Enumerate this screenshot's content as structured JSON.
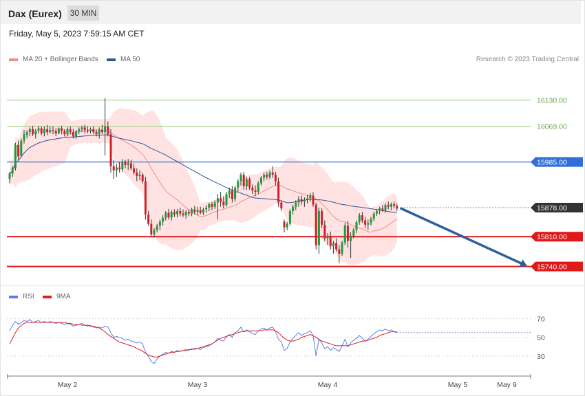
{
  "header": {
    "title": "Dax (Eurex)",
    "interval": "30 MIN",
    "datetime": "Friday, May 5, 2023 7:59:15 AM CET"
  },
  "legend": {
    "ma20": "MA 20 + Bollinger Bands",
    "ma50": "MA 50",
    "rsi": "RSI",
    "rsi_ma": "9MA"
  },
  "credit": "Research © 2023 Trading Central",
  "colors": {
    "ma20": "#f08a8a",
    "ma50": "#2f5597",
    "rsi": "#5b7fe8",
    "rsi_ma": "#e02020",
    "band": "#ffd9d9",
    "up": "#1f9a3c",
    "down": "#d0202a",
    "arrow": "#2e5f9b"
  },
  "chart_data": {
    "type": "candlestick",
    "price_range": [
      15712,
      16210
    ],
    "levels": [
      {
        "value": "16130.00",
        "price": 16130,
        "color": "#8cc870",
        "style": "target-green"
      },
      {
        "value": "16069.00",
        "price": 16069,
        "color": "#8cc870",
        "style": "target-green"
      },
      {
        "value": "15985.00",
        "price": 15985,
        "color": "#2f6fd6",
        "style": "pivot"
      },
      {
        "value": "15878.00",
        "price": 15878,
        "color": "#333333",
        "style": "last-price"
      },
      {
        "value": "15810.00",
        "price": 15810,
        "color": "#e01818",
        "style": "support"
      },
      {
        "value": "15740.00",
        "price": 15740,
        "color": "#e01818",
        "style": "support"
      }
    ],
    "x_labels": [
      "May 2",
      "May 3",
      "May 4",
      "May 5",
      "May 9"
    ],
    "x_label_bar_index": [
      20,
      65,
      110,
      155,
      172
    ],
    "rsi_ticks": [
      "70",
      "50",
      "30"
    ],
    "rsi_range": [
      10,
      80
    ],
    "forecast_arrow": {
      "from_price": 15876,
      "to_price": 15741
    },
    "candles": [
      [
        15945,
        15962,
        15935,
        15958
      ],
      [
        15958,
        15975,
        15950,
        15970
      ],
      [
        15970,
        16030,
        15965,
        16025
      ],
      [
        16025,
        16035,
        15990,
        15998
      ],
      [
        16000,
        16040,
        15996,
        16035
      ],
      [
        16035,
        16060,
        16028,
        16050
      ],
      [
        16048,
        16060,
        16040,
        16055
      ],
      [
        16055,
        16066,
        16045,
        16062
      ],
      [
        16062,
        16070,
        16046,
        16050
      ],
      [
        16050,
        16062,
        16040,
        16058
      ],
      [
        16058,
        16070,
        16052,
        16064
      ],
      [
        16064,
        16068,
        16048,
        16052
      ],
      [
        16052,
        16068,
        16045,
        16062
      ],
      [
        16062,
        16072,
        16048,
        16055
      ],
      [
        16055,
        16068,
        16052,
        16060
      ],
      [
        16060,
        16068,
        16050,
        16058
      ],
      [
        16058,
        16064,
        16046,
        16052
      ],
      [
        16052,
        16066,
        16050,
        16064
      ],
      [
        16064,
        16070,
        16050,
        16058
      ],
      [
        16058,
        16062,
        16045,
        16050
      ],
      [
        16050,
        16066,
        16046,
        16062
      ],
      [
        16062,
        16068,
        16050,
        16055
      ],
      [
        16055,
        16062,
        16040,
        16045
      ],
      [
        16045,
        16060,
        16040,
        16057
      ],
      [
        16057,
        16066,
        16050,
        16062
      ],
      [
        16062,
        16070,
        16055,
        16066
      ],
      [
        16066,
        16072,
        16052,
        16060
      ],
      [
        16060,
        16068,
        16052,
        16058
      ],
      [
        16058,
        16066,
        16052,
        16062
      ],
      [
        16062,
        16068,
        16050,
        16055
      ],
      [
        16055,
        16062,
        16045,
        16050
      ],
      [
        16050,
        16066,
        16040,
        16061
      ],
      [
        16061,
        16072,
        16050,
        16055
      ],
      [
        16055,
        16135,
        16000,
        16068
      ],
      [
        16068,
        16080,
        16045,
        16050
      ],
      [
        16050,
        16062,
        15960,
        15975
      ],
      [
        15975,
        15990,
        15945,
        15965
      ],
      [
        15965,
        15980,
        15950,
        15972
      ],
      [
        15972,
        15985,
        15960,
        15968
      ],
      [
        15968,
        15992,
        15962,
        15985
      ],
      [
        15985,
        15990,
        15970,
        15978
      ],
      [
        15978,
        15992,
        15966,
        15982
      ],
      [
        15982,
        15990,
        15965,
        15970
      ],
      [
        15970,
        15980,
        15955,
        15960
      ],
      [
        15960,
        15970,
        15940,
        15952
      ],
      [
        15952,
        15965,
        15942,
        15955
      ],
      [
        15955,
        15960,
        15935,
        15940
      ],
      [
        15940,
        15950,
        15850,
        15862
      ],
      [
        15862,
        15870,
        15835,
        15840
      ],
      [
        15840,
        15850,
        15810,
        15815
      ],
      [
        15815,
        15830,
        15808,
        15826
      ],
      [
        15826,
        15840,
        15820,
        15835
      ],
      [
        15835,
        15850,
        15825,
        15845
      ],
      [
        15845,
        15860,
        15836,
        15854
      ],
      [
        15854,
        15870,
        15848,
        15866
      ],
      [
        15866,
        15875,
        15850,
        15855
      ],
      [
        15855,
        15872,
        15848,
        15868
      ],
      [
        15868,
        15874,
        15856,
        15862
      ],
      [
        15862,
        15875,
        15855,
        15870
      ],
      [
        15870,
        15878,
        15858,
        15864
      ],
      [
        15864,
        15874,
        15856,
        15860
      ],
      [
        15860,
        15872,
        15852,
        15868
      ],
      [
        15868,
        15874,
        15858,
        15864
      ],
      [
        15864,
        15878,
        15858,
        15874
      ],
      [
        15874,
        15882,
        15862,
        15868
      ],
      [
        15868,
        15880,
        15860,
        15872
      ],
      [
        15872,
        15880,
        15862,
        15866
      ],
      [
        15866,
        15878,
        15860,
        15874
      ],
      [
        15874,
        15884,
        15866,
        15878
      ],
      [
        15878,
        15890,
        15870,
        15886
      ],
      [
        15886,
        15892,
        15872,
        15880
      ],
      [
        15880,
        15895,
        15875,
        15890
      ],
      [
        15890,
        15910,
        15850,
        15900
      ],
      [
        15900,
        15915,
        15880,
        15892
      ],
      [
        15892,
        15905,
        15876,
        15884
      ],
      [
        15884,
        15915,
        15880,
        15910
      ],
      [
        15910,
        15925,
        15900,
        15918
      ],
      [
        15918,
        15928,
        15890,
        15898
      ],
      [
        15898,
        15930,
        15892,
        15925
      ],
      [
        15925,
        15945,
        15915,
        15940
      ],
      [
        15940,
        15960,
        15930,
        15955
      ],
      [
        15955,
        15962,
        15920,
        15928
      ],
      [
        15928,
        15950,
        15920,
        15945
      ],
      [
        15945,
        15950,
        15920,
        15925
      ],
      [
        15925,
        15932,
        15910,
        15918
      ],
      [
        15918,
        15930,
        15905,
        15915
      ],
      [
        15915,
        15940,
        15910,
        15935
      ],
      [
        15935,
        15952,
        15930,
        15948
      ],
      [
        15948,
        15960,
        15940,
        15955
      ],
      [
        15955,
        15962,
        15944,
        15950
      ],
      [
        15950,
        15965,
        15945,
        15960
      ],
      [
        15960,
        15975,
        15948,
        15955
      ],
      [
        15955,
        15962,
        15930,
        15940
      ],
      [
        15940,
        15948,
        15880,
        15890
      ],
      [
        15890,
        15895,
        15870,
        15876
      ],
      [
        15845,
        15850,
        15820,
        15832
      ],
      [
        15832,
        15845,
        15825,
        15840
      ],
      [
        15840,
        15875,
        15836,
        15870
      ],
      [
        15870,
        15885,
        15862,
        15880
      ],
      [
        15880,
        15895,
        15872,
        15890
      ],
      [
        15890,
        15905,
        15880,
        15898
      ],
      [
        15898,
        15906,
        15885,
        15892
      ],
      [
        15892,
        15902,
        15880,
        15896
      ],
      [
        15896,
        15908,
        15888,
        15900
      ],
      [
        15900,
        15912,
        15892,
        15906
      ],
      [
        15906,
        15914,
        15880,
        15885
      ],
      [
        15885,
        15890,
        15780,
        15790
      ],
      [
        15790,
        15878,
        15770,
        15870
      ],
      [
        15870,
        15876,
        15830,
        15838
      ],
      [
        15838,
        15848,
        15800,
        15806
      ],
      [
        15806,
        15818,
        15790,
        15812
      ],
      [
        15812,
        15822,
        15780,
        15788
      ],
      [
        15788,
        15800,
        15770,
        15795
      ],
      [
        15795,
        15806,
        15775,
        15780
      ],
      [
        15780,
        15790,
        15748,
        15770
      ],
      [
        15770,
        15800,
        15765,
        15796
      ],
      [
        15796,
        15842,
        15790,
        15836
      ],
      [
        15836,
        15846,
        15784,
        15800
      ],
      [
        15800,
        15820,
        15760,
        15812
      ],
      [
        15812,
        15830,
        15806,
        15826
      ],
      [
        15826,
        15848,
        15818,
        15844
      ],
      [
        15844,
        15865,
        15838,
        15860
      ],
      [
        15860,
        15868,
        15842,
        15848
      ],
      [
        15848,
        15856,
        15830,
        15838
      ],
      [
        15838,
        15850,
        15826,
        15842
      ],
      [
        15842,
        15856,
        15836,
        15852
      ],
      [
        15852,
        15868,
        15846,
        15864
      ],
      [
        15864,
        15874,
        15858,
        15870
      ],
      [
        15870,
        15880,
        15862,
        15876
      ],
      [
        15876,
        15884,
        15868,
        15872
      ],
      [
        15872,
        15888,
        15866,
        15884
      ],
      [
        15884,
        15892,
        15874,
        15880
      ],
      [
        15880,
        15890,
        15872,
        15886
      ],
      [
        15886,
        15892,
        15876,
        15882
      ],
      [
        15882,
        15888,
        15870,
        15876
      ]
    ],
    "rsi": [
      57,
      63,
      67,
      64,
      66,
      68,
      67,
      69,
      66,
      67,
      68,
      66,
      67,
      66,
      67,
      66,
      65,
      66,
      65,
      64,
      65,
      64,
      62,
      63,
      64,
      65,
      63,
      62,
      63,
      61,
      60,
      61,
      60,
      62,
      61,
      55,
      50,
      51,
      50,
      49,
      47,
      48,
      46,
      45,
      44,
      45,
      43,
      34,
      30,
      24,
      22,
      27,
      30,
      32,
      34,
      33,
      35,
      34,
      36,
      35,
      36,
      37,
      36,
      38,
      37,
      38,
      37,
      39,
      40,
      41,
      43,
      45,
      49,
      47,
      46,
      51,
      53,
      50,
      55,
      57,
      61,
      56,
      58,
      56,
      54,
      53,
      57,
      59,
      60,
      58,
      60,
      61,
      56,
      48,
      45,
      36,
      38,
      45,
      49,
      52,
      55,
      52,
      54,
      55,
      57,
      52,
      30,
      48,
      44,
      38,
      40,
      36,
      39,
      37,
      35,
      41,
      48,
      40,
      44,
      47,
      49,
      52,
      49,
      46,
      48,
      51,
      54,
      56,
      58,
      57,
      59,
      57,
      58,
      56,
      55
    ],
    "rsi_ma": [
      43,
      49,
      55,
      60,
      63,
      65,
      66,
      66,
      66,
      66,
      66,
      66,
      66,
      66,
      66,
      66,
      66,
      66,
      66,
      66,
      65,
      65,
      64,
      64,
      64,
      63,
      63,
      63,
      62,
      62,
      61,
      60,
      58,
      56,
      53,
      51,
      49,
      47,
      45,
      44,
      43,
      42,
      41,
      40,
      38,
      37,
      35,
      33,
      31,
      30,
      29,
      29,
      30,
      31,
      32,
      33,
      34,
      34,
      35,
      35,
      36,
      36,
      37,
      37,
      38,
      38,
      39,
      40,
      41,
      42,
      43,
      45,
      47,
      49,
      50,
      51,
      52,
      53,
      54,
      55,
      56,
      56,
      57,
      57,
      57,
      57,
      57,
      57,
      58,
      58,
      58,
      58,
      57,
      55,
      52,
      49,
      47,
      46,
      46,
      47,
      48,
      50,
      51,
      52,
      53,
      52,
      50,
      48,
      46,
      45,
      44,
      43,
      42,
      41,
      41,
      41,
      41,
      41,
      42,
      43,
      44,
      45,
      46,
      46,
      47,
      48,
      49,
      50,
      52,
      53,
      54,
      55,
      56,
      56,
      56
    ]
  }
}
